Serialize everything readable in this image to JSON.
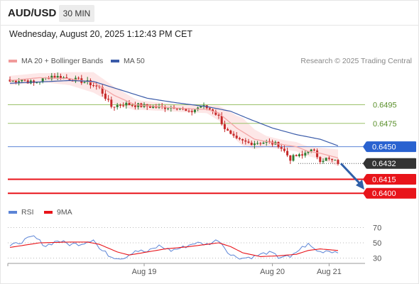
{
  "header": {
    "symbol": "AUD/USD",
    "timeframe": "30 MIN"
  },
  "timestamp": "Wednesday, August 20, 2025 1:12:43 PM CET",
  "credit": "Research © 2025 Trading Central",
  "colors": {
    "ma20": "#f4a6a6",
    "ma50": "#3a5ba9",
    "bands": "#fde4e4",
    "up": "#2e7d32",
    "down": "#c62828",
    "green_level": "#9bc26a",
    "blue_level": "#5b84d6",
    "red_level": "#e8141a",
    "rsi": "#5b84d6",
    "rsi_ma": "#e8141a",
    "arrow": "#2f5fa8"
  },
  "legend": {
    "main": [
      {
        "name": "MA 20 + Bollinger Bands",
        "color": "#f19a9a"
      },
      {
        "name": "MA 50",
        "color": "#3a5ba9"
      }
    ],
    "rsi": [
      {
        "name": "RSI",
        "color": "#5b84d6"
      },
      {
        "name": "9MA",
        "color": "#e8141a"
      }
    ]
  },
  "chart_data": [
    {
      "type": "candlestick",
      "title": "",
      "ylim": [
        0.6388,
        0.6535
      ],
      "levels": [
        {
          "value": 0.6495,
          "label": "0.6495",
          "style": "green-line"
        },
        {
          "value": 0.6475,
          "label": "0.6475",
          "style": "green-line"
        },
        {
          "value": 0.645,
          "label": "0.6450",
          "style": "blue-box"
        },
        {
          "value": 0.6432,
          "label": "0.6432",
          "style": "current-price"
        },
        {
          "value": 0.6415,
          "label": "0.6415",
          "style": "red-box"
        },
        {
          "value": 0.64,
          "label": "0.6400",
          "style": "red-box"
        }
      ],
      "ma20_anchors": [
        [
          0,
          0.6521
        ],
        [
          10,
          0.6524
        ],
        [
          20,
          0.6523
        ],
        [
          28,
          0.6519
        ],
        [
          35,
          0.6505
        ],
        [
          42,
          0.6495
        ],
        [
          50,
          0.6493
        ],
        [
          58,
          0.6491
        ],
        [
          66,
          0.649
        ],
        [
          70,
          0.6486
        ],
        [
          76,
          0.647
        ],
        [
          82,
          0.6458
        ],
        [
          90,
          0.6453
        ],
        [
          96,
          0.645
        ],
        [
          100,
          0.6445
        ],
        [
          104,
          0.6443
        ],
        [
          110,
          0.6438
        ]
      ],
      "band_half_width_anchors": [
        [
          0,
          0.0005
        ],
        [
          12,
          0.0005
        ],
        [
          20,
          0.0007
        ],
        [
          28,
          0.0011
        ],
        [
          36,
          0.0009
        ],
        [
          44,
          0.0005
        ],
        [
          56,
          0.0004
        ],
        [
          66,
          0.0004
        ],
        [
          72,
          0.001
        ],
        [
          78,
          0.0015
        ],
        [
          86,
          0.0006
        ],
        [
          92,
          0.0005
        ],
        [
          98,
          0.0005
        ],
        [
          104,
          0.0006
        ],
        [
          110,
          0.0009
        ]
      ],
      "ma50_anchors": [
        [
          0,
          0.6518
        ],
        [
          20,
          0.6521
        ],
        [
          28,
          0.652
        ],
        [
          36,
          0.6512
        ],
        [
          46,
          0.6502
        ],
        [
          56,
          0.6497
        ],
        [
          66,
          0.6493
        ],
        [
          74,
          0.6488
        ],
        [
          80,
          0.648
        ],
        [
          88,
          0.647
        ],
        [
          96,
          0.6463
        ],
        [
          104,
          0.6458
        ],
        [
          110,
          0.6451
        ]
      ],
      "close_anchors": [
        [
          0,
          0.652
        ],
        [
          4,
          0.6522
        ],
        [
          8,
          0.6518
        ],
        [
          14,
          0.6526
        ],
        [
          20,
          0.6523
        ],
        [
          26,
          0.6519
        ],
        [
          30,
          0.6513
        ],
        [
          34,
          0.6493
        ],
        [
          38,
          0.6496
        ],
        [
          44,
          0.6494
        ],
        [
          50,
          0.6492
        ],
        [
          56,
          0.6493
        ],
        [
          60,
          0.6486
        ],
        [
          64,
          0.6494
        ],
        [
          68,
          0.6489
        ],
        [
          70,
          0.6482
        ],
        [
          72,
          0.647
        ],
        [
          74,
          0.6462
        ],
        [
          76,
          0.6457
        ],
        [
          80,
          0.6454
        ],
        [
          86,
          0.6455
        ],
        [
          90,
          0.6452
        ],
        [
          92,
          0.6445
        ],
        [
          94,
          0.6437
        ],
        [
          96,
          0.644
        ],
        [
          98,
          0.644
        ],
        [
          100,
          0.6447
        ],
        [
          102,
          0.6444
        ],
        [
          104,
          0.6436
        ],
        [
          106,
          0.6437
        ],
        [
          110,
          0.6433
        ]
      ],
      "forecast": {
        "from_value": 0.6432,
        "to_value": 0.6404,
        "direction": "down"
      },
      "x_ticks": [
        {
          "index": 45,
          "label": "Aug 19"
        },
        {
          "index": 88,
          "label": "Aug 20"
        },
        {
          "index": 107,
          "label": "Aug 21"
        }
      ],
      "candle_count": 111
    },
    {
      "type": "line",
      "title": "RSI",
      "ylim": [
        24,
        76
      ],
      "y_ticks": [
        70,
        50,
        30
      ],
      "rsi_anchors": [
        [
          0,
          45
        ],
        [
          4,
          52
        ],
        [
          8,
          58
        ],
        [
          12,
          46
        ],
        [
          16,
          53
        ],
        [
          20,
          48
        ],
        [
          24,
          49
        ],
        [
          28,
          55
        ],
        [
          30,
          42
        ],
        [
          34,
          32
        ],
        [
          38,
          30
        ],
        [
          42,
          40
        ],
        [
          46,
          38
        ],
        [
          50,
          46
        ],
        [
          54,
          40
        ],
        [
          58,
          44
        ],
        [
          62,
          50
        ],
        [
          66,
          48
        ],
        [
          70,
          54
        ],
        [
          72,
          44
        ],
        [
          74,
          34
        ],
        [
          78,
          30
        ],
        [
          82,
          32
        ],
        [
          86,
          37
        ],
        [
          88,
          36
        ],
        [
          90,
          31
        ],
        [
          92,
          33
        ],
        [
          94,
          30
        ],
        [
          96,
          38
        ],
        [
          98,
          44
        ],
        [
          100,
          48
        ],
        [
          102,
          42
        ],
        [
          104,
          38
        ],
        [
          106,
          40
        ],
        [
          110,
          38
        ]
      ],
      "rsi_ma_anchors": [
        [
          0,
          44
        ],
        [
          10,
          50
        ],
        [
          20,
          51
        ],
        [
          26,
          51
        ],
        [
          30,
          48
        ],
        [
          36,
          38
        ],
        [
          40,
          34
        ],
        [
          46,
          38
        ],
        [
          52,
          42
        ],
        [
          60,
          45
        ],
        [
          66,
          48
        ],
        [
          70,
          50
        ],
        [
          74,
          45
        ],
        [
          78,
          37
        ],
        [
          84,
          32
        ],
        [
          90,
          33
        ],
        [
          96,
          35
        ],
        [
          100,
          40
        ],
        [
          104,
          42
        ],
        [
          110,
          40
        ]
      ]
    }
  ]
}
